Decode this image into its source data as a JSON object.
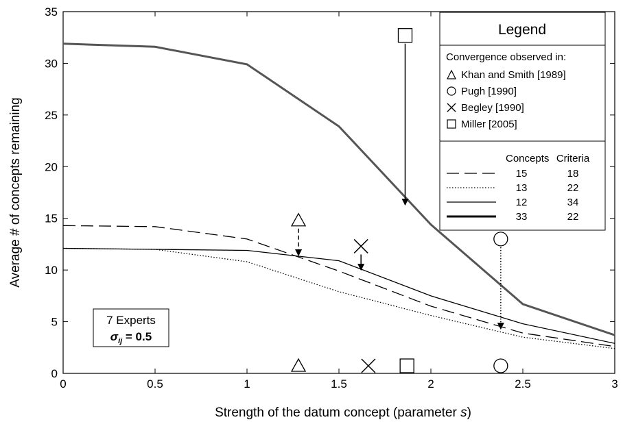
{
  "chart_data": {
    "type": "line",
    "xlabel_prefix": "Strength of the datum concept (parameter ",
    "xlabel_param": "s",
    "xlabel_suffix": ")",
    "ylabel": "Average # of concepts remaining",
    "xlim": [
      0,
      3
    ],
    "ylim": [
      0,
      35
    ],
    "xticks": [
      0,
      0.5,
      1,
      1.5,
      2,
      2.5,
      3
    ],
    "yticks": [
      0,
      5,
      10,
      15,
      20,
      25,
      30,
      35
    ],
    "grid": false,
    "series": [
      {
        "style": "dashed",
        "concepts": "15",
        "criteria": "18",
        "color": "#000000",
        "x": [
          0,
          0.5,
          1,
          1.5,
          2,
          2.5,
          3
        ],
        "y": [
          14.3,
          14.2,
          13.0,
          9.9,
          6.5,
          3.9,
          2.6
        ]
      },
      {
        "style": "dotted",
        "concepts": "13",
        "criteria": "22",
        "color": "#000000",
        "x": [
          0,
          0.5,
          1,
          1.5,
          2,
          2.5,
          3
        ],
        "y": [
          12.1,
          12.0,
          10.8,
          7.9,
          5.6,
          3.5,
          2.4
        ]
      },
      {
        "style": "solid",
        "concepts": "12",
        "criteria": "34",
        "color": "#000000",
        "x": [
          0,
          0.5,
          1,
          1.5,
          2,
          2.5,
          3
        ],
        "y": [
          12.1,
          12.0,
          11.9,
          10.9,
          7.5,
          4.8,
          2.9
        ]
      },
      {
        "style": "thick",
        "concepts": "33",
        "criteria": "22",
        "color": "#555555",
        "x": [
          0,
          0.5,
          1,
          1.5,
          2,
          2.5,
          3
        ],
        "y": [
          31.9,
          31.6,
          29.9,
          23.9,
          14.4,
          6.7,
          3.7
        ]
      }
    ],
    "observations": [
      {
        "name": "Khan and Smith [1989]",
        "marker": "triangle",
        "x": 1.28,
        "y_obs": 14.8,
        "y_pred": 11.4,
        "arrow": "dashed"
      },
      {
        "name": "Pugh [1990]",
        "marker": "circle",
        "x": 2.38,
        "y_obs": 13.0,
        "y_pred": 4.3,
        "arrow": "dotted"
      },
      {
        "name": "Begley [1990]",
        "marker": "x",
        "x": 1.62,
        "y_obs": 12.3,
        "y_pred": 10.0,
        "arrow": "solid"
      },
      {
        "name": "Miller [2005]",
        "marker": "square",
        "x": 1.86,
        "y_obs": 32.7,
        "y_pred": 16.3,
        "arrow": "solid"
      }
    ],
    "axis_markers": [
      {
        "marker": "triangle",
        "x": 1.28
      },
      {
        "marker": "x",
        "x": 1.66
      },
      {
        "marker": "square",
        "x": 1.87
      },
      {
        "marker": "circle",
        "x": 2.38
      }
    ],
    "legend": {
      "placement": "top-right",
      "title": "Legend",
      "subtitle": "Convergence observed in:",
      "col_concepts": "Concepts",
      "col_criteria": "Criteria"
    },
    "annotation": {
      "line1": "7 Experts",
      "sigma": "σ",
      "subscript": "ij",
      "value": " = 0.5"
    }
  }
}
